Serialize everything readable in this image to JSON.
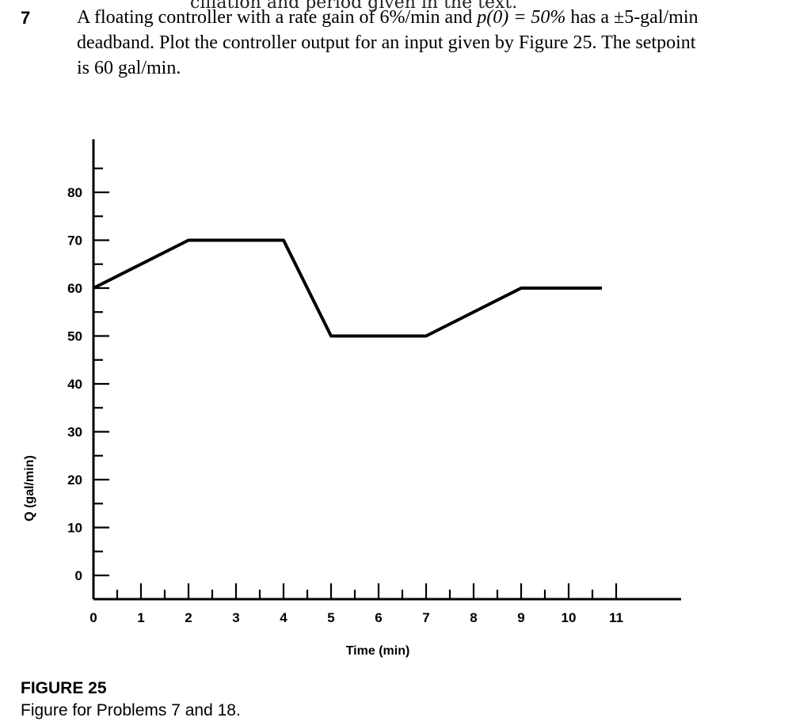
{
  "problem": {
    "previous_text_fragment": "cillation and period given in the text.",
    "number": "7",
    "line1": "A floating controller with a rate gain of 6%/min and ",
    "line1_math": "p(0) = 50%",
    "line1_end": " has a ±5-gal/min",
    "line2": "deadband. Plot the controller output for an input given by Figure 25. The setpoint",
    "line3": "is 60 gal/min."
  },
  "figure": {
    "label": "FIGURE 25",
    "caption": "Figure for Problems 7 and 18."
  },
  "chart_data": {
    "type": "line",
    "title": "",
    "xlabel": "Time (min)",
    "ylabel": "Q (gal/min)",
    "xlim": [
      0,
      11.5
    ],
    "ylim": [
      -5,
      95
    ],
    "x_ticks": [
      0,
      1,
      2,
      3,
      4,
      5,
      6,
      7,
      8,
      9,
      10,
      11
    ],
    "y_ticks": [
      0,
      10,
      20,
      30,
      40,
      50,
      60,
      70,
      80
    ],
    "grid": false,
    "series": [
      {
        "x": [
          0,
          2,
          4,
          5,
          7,
          9,
          10.7
        ],
        "y": [
          60,
          70,
          70,
          50,
          50,
          60,
          60
        ]
      }
    ]
  }
}
